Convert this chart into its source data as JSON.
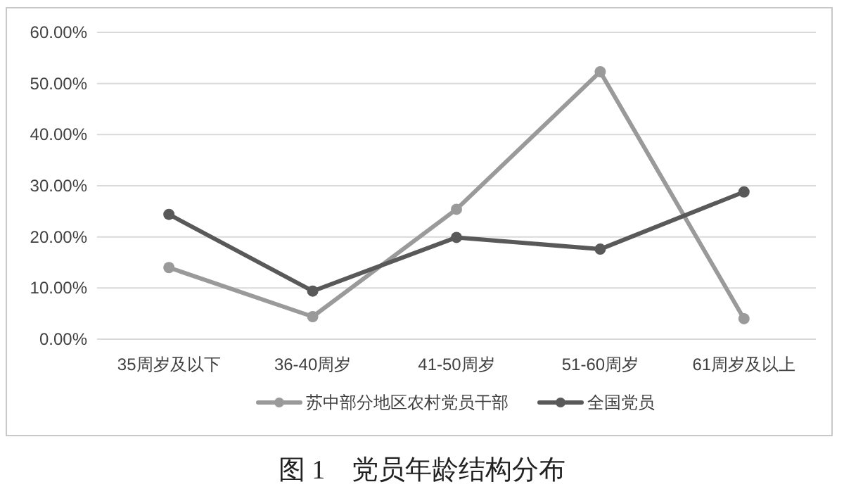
{
  "chart_data": {
    "type": "line",
    "title": "图 1　党员年龄结构分布",
    "categories": [
      "35周岁及以下",
      "36-40周岁",
      "41-50周岁",
      "51-60周岁",
      "61周岁及以上"
    ],
    "series": [
      {
        "name": "苏中部分地区农村党员干部",
        "color": "#9a9a9a",
        "values": [
          14.0,
          4.4,
          25.4,
          52.3,
          4.0
        ]
      },
      {
        "name": "全国党员",
        "color": "#595959",
        "values": [
          24.4,
          9.4,
          19.9,
          17.6,
          28.8
        ]
      }
    ],
    "ylim": [
      0,
      60
    ],
    "yticks": [
      {
        "value": 0,
        "label": "0.00%"
      },
      {
        "value": 10,
        "label": "10.00%"
      },
      {
        "value": 20,
        "label": "20.00%"
      },
      {
        "value": 30,
        "label": "30.00%"
      },
      {
        "value": 40,
        "label": "40.00%"
      },
      {
        "value": 50,
        "label": "50.00%"
      },
      {
        "value": 60,
        "label": "60.00%"
      }
    ],
    "grid": "y",
    "legend": "bottom",
    "marker": "circle",
    "line_style": "solid"
  }
}
